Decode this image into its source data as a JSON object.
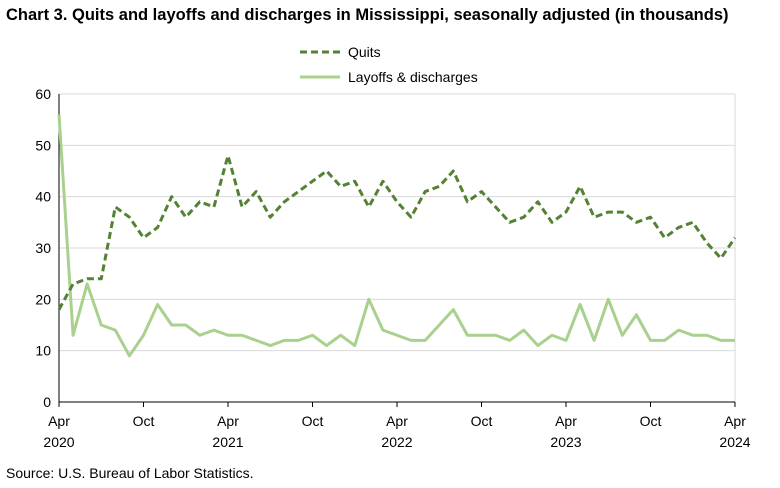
{
  "title": "Chart 3. Quits and layoffs and discharges in Mississippi, seasonally adjusted (in thousands)",
  "source": "Source: U.S. Bureau of Labor Statistics.",
  "chart_data": {
    "type": "line",
    "title": "Chart 3. Quits and layoffs and discharges in Mississippi, seasonally adjusted (in thousands)",
    "xlabel": "",
    "ylabel": "",
    "ylim": [
      0,
      60
    ],
    "yticks": [
      "0",
      "10",
      "20",
      "30",
      "40",
      "50",
      "60"
    ],
    "x_start": "2020-04",
    "x_end": "2024-04",
    "x_tick_labels": [
      {
        "month": "2020-04",
        "label": "Apr",
        "year": "2020"
      },
      {
        "month": "2020-10",
        "label": "Oct",
        "year": ""
      },
      {
        "month": "2021-04",
        "label": "Apr",
        "year": "2021"
      },
      {
        "month": "2021-10",
        "label": "Oct",
        "year": ""
      },
      {
        "month": "2022-04",
        "label": "Apr",
        "year": "2022"
      },
      {
        "month": "2022-10",
        "label": "Oct",
        "year": ""
      },
      {
        "month": "2023-04",
        "label": "Apr",
        "year": "2023"
      },
      {
        "month": "2023-10",
        "label": "Oct",
        "year": ""
      },
      {
        "month": "2024-04",
        "label": "Apr",
        "year": "2024"
      }
    ],
    "grid": true,
    "legend_position": "top-center",
    "series": [
      {
        "name": "Quits",
        "style": "dashed",
        "color": "#548235",
        "values": [
          18,
          23,
          24,
          24,
          38,
          36,
          32,
          34,
          40,
          36,
          39,
          38,
          48,
          38,
          41,
          36,
          39,
          41,
          43,
          45,
          42,
          43,
          38,
          43,
          39,
          36,
          41,
          42,
          45,
          39,
          41,
          38,
          35,
          36,
          39,
          35,
          37,
          42,
          36,
          37,
          37,
          35,
          36,
          32,
          34,
          35,
          31,
          28,
          32
        ]
      },
      {
        "name": "Layoffs & discharges",
        "style": "solid",
        "color": "#a9d18e",
        "values": [
          56,
          13,
          23,
          15,
          14,
          9,
          13,
          19,
          15,
          15,
          13,
          14,
          13,
          13,
          12,
          11,
          12,
          12,
          13,
          11,
          13,
          11,
          20,
          14,
          13,
          12,
          12,
          15,
          18,
          13,
          13,
          13,
          12,
          14,
          11,
          13,
          12,
          19,
          12,
          20,
          13,
          17,
          12,
          12,
          14,
          13,
          13,
          12,
          12
        ]
      }
    ]
  }
}
